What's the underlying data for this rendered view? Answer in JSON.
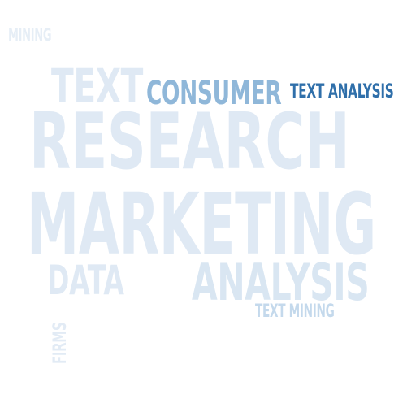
{
  "words": {
    "research": {
      "text": "RESEARCH",
      "color": "#dfe9f4"
    },
    "marketing": {
      "text": "MARKETING",
      "color": "#dfe9f4"
    },
    "text": {
      "text": "TEXT",
      "color": "#dfe9f4"
    },
    "consumer": {
      "text": "CONSUMER",
      "color": "#8fb7d9"
    },
    "text_analysis": {
      "text": "TEXT ANALYSIS",
      "color": "#2f6faa"
    },
    "analysis": {
      "text": "ANALYSIS",
      "color": "#d9e6f2"
    },
    "data": {
      "text": "DATA",
      "color": "#dfe9f4"
    },
    "text_mining": {
      "text": "TEXT MINING",
      "color": "#c4d9ec"
    },
    "mining": {
      "text": "MINING",
      "color": "#e6eef6"
    },
    "firms": {
      "text": "FIRMS",
      "color": "#e2ebf5"
    }
  }
}
